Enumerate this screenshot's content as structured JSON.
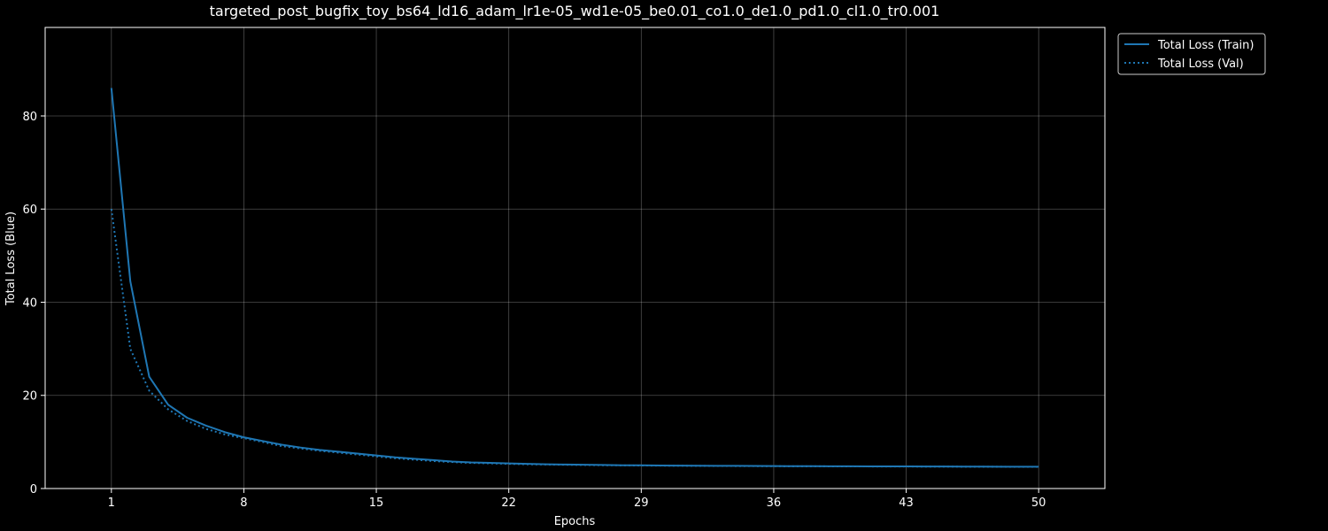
{
  "chart_data": {
    "type": "line",
    "title": "targeted_post_bugfix_toy_bs64_ld16_adam_lr1e-05_wd1e-05_be0.01_co1.0_de1.0_pd1.0_cl1.0_tr0.001",
    "xlabel": "Epochs",
    "ylabel": "Total Loss (Blue)",
    "xlim": [
      -2.5,
      53.5
    ],
    "ylim": [
      0,
      99
    ],
    "x_ticks": [
      1,
      8,
      15,
      22,
      29,
      36,
      43,
      50
    ],
    "y_ticks": [
      0,
      20,
      40,
      60,
      80
    ],
    "grid": true,
    "legend_position": "outside-top-right",
    "series": [
      {
        "name": "Total Loss (Train)",
        "color": "#1f77b4",
        "line_style": "solid",
        "x": [
          1,
          2,
          3,
          4,
          5,
          6,
          7,
          8,
          9,
          10,
          11,
          12,
          13,
          14,
          15,
          16,
          17,
          18,
          19,
          20,
          21,
          22,
          23,
          24,
          25,
          26,
          27,
          28,
          29,
          30,
          31,
          32,
          33,
          34,
          35,
          36,
          37,
          38,
          39,
          40,
          41,
          42,
          43,
          44,
          45,
          46,
          47,
          48,
          49,
          50
        ],
        "y": [
          86.0,
          44.5,
          24.0,
          18.0,
          15.2,
          13.5,
          12.1,
          11.0,
          10.2,
          9.4,
          8.8,
          8.3,
          7.9,
          7.5,
          7.1,
          6.7,
          6.4,
          6.1,
          5.8,
          5.6,
          5.5,
          5.4,
          5.3,
          5.2,
          5.15,
          5.1,
          5.05,
          5.0,
          4.98,
          4.95,
          4.92,
          4.9,
          4.88,
          4.86,
          4.84,
          4.82,
          4.8,
          4.79,
          4.78,
          4.77,
          4.76,
          4.75,
          4.74,
          4.73,
          4.72,
          4.71,
          4.7,
          4.69,
          4.68,
          4.67
        ]
      },
      {
        "name": "Total Loss (Val)",
        "color": "#1f77b4",
        "line_style": "dotted",
        "x": [
          1,
          2,
          3,
          4,
          5,
          6,
          7,
          8,
          9,
          10,
          11,
          12,
          13,
          14,
          15,
          16,
          17,
          18,
          19,
          20,
          21,
          22,
          23,
          24,
          25,
          26,
          27,
          28,
          29,
          30,
          31,
          32,
          33,
          34,
          35,
          36,
          37,
          38,
          39,
          40,
          41,
          42,
          43,
          44,
          45,
          46,
          47,
          48,
          49,
          50
        ],
        "y": [
          60.0,
          30.0,
          21.0,
          17.0,
          14.5,
          12.8,
          11.6,
          10.8,
          10.0,
          9.1,
          8.6,
          8.1,
          7.7,
          7.3,
          6.9,
          6.5,
          6.2,
          5.9,
          5.7,
          5.5,
          5.4,
          5.3,
          5.2,
          5.15,
          5.1,
          5.05,
          5.0,
          4.97,
          4.94,
          4.91,
          4.89,
          4.87,
          4.85,
          4.83,
          4.81,
          4.79,
          4.78,
          4.77,
          4.76,
          4.75,
          4.74,
          4.73,
          4.72,
          4.71,
          4.7,
          4.69,
          4.68,
          4.67,
          4.66,
          4.65
        ]
      }
    ]
  }
}
